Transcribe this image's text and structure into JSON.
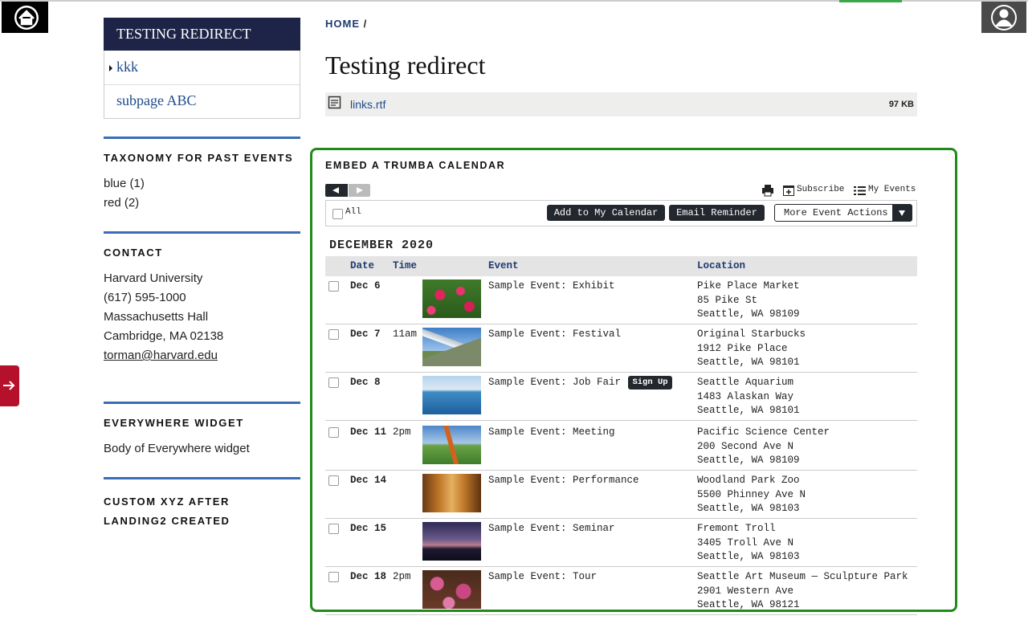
{
  "sidebar": {
    "nav": {
      "title": "TESTING REDIRECT",
      "items": [
        "kkk",
        "subpage ABC"
      ]
    },
    "taxonomy": {
      "title": "TAXONOMY FOR PAST EVENTS",
      "links": [
        "blue (1)",
        "red (2)"
      ]
    },
    "contact": {
      "title": "CONTACT",
      "lines": [
        "Harvard University",
        "(617) 595-1000",
        "Massachusetts Hall",
        "Cambridge, MA 02138"
      ],
      "email": "torman@harvard.edu"
    },
    "widget": {
      "title": "EVERYWHERE WIDGET",
      "body": "Body of Everywhere widget"
    },
    "custom": {
      "title": "CUSTOM XYZ AFTER LANDING2 CREATED"
    }
  },
  "breadcrumb": {
    "home": "HOME",
    "separator": "/"
  },
  "page_title": "Testing redirect",
  "attachment": {
    "name": "links.rtf",
    "size": "97 KB"
  },
  "calendar": {
    "title": "EMBED A TRUMBA CALENDAR",
    "toolbar": {
      "subscribe": "Subscribe",
      "my_events": "My Events"
    },
    "select_all": "All",
    "actions": [
      "Add to My Calendar",
      "Email Reminder",
      "More Event Actions"
    ],
    "month": "DECEMBER 2020",
    "columns": [
      "Date",
      "Time",
      "Event",
      "Location"
    ],
    "events": [
      {
        "date": "Dec 6",
        "event": "Sample Event: Exhibit",
        "location": [
          "Pike Place Market",
          "85 Pike St",
          "Seattle, WA 98109"
        ]
      },
      {
        "date": "Dec 7",
        "time": "11am",
        "event": "Sample Event: Festival",
        "location": [
          "Original Starbucks",
          "1912 Pike Place",
          "Seattle, WA 98101"
        ]
      },
      {
        "date": "Dec 8",
        "event": "Sample Event: Job Fair",
        "button": "Sign Up",
        "location": [
          "Seattle Aquarium",
          "1483 Alaskan Way",
          "Seattle, WA 98101"
        ]
      },
      {
        "date": "Dec 11",
        "time": "2pm",
        "event": "Sample Event: Meeting",
        "location": [
          "Pacific Science Center",
          "200 Second Ave N",
          "Seattle, WA 98109"
        ]
      },
      {
        "date": "Dec 14",
        "event": "Sample Event: Performance",
        "location": [
          "Woodland Park Zoo",
          "5500 Phinney Ave N",
          "Seattle, WA 98103"
        ]
      },
      {
        "date": "Dec 15",
        "event": "Sample Event: Seminar",
        "location": [
          "Fremont Troll",
          "3405 Troll Ave N",
          "Seattle, WA 98103"
        ]
      },
      {
        "date": "Dec 18",
        "time": "2pm",
        "event": "Sample Event: Tour",
        "location": [
          "Seattle Art Museum — Sculpture Park",
          "2901 Western Ave",
          "Seattle, WA 98121"
        ]
      }
    ]
  }
}
